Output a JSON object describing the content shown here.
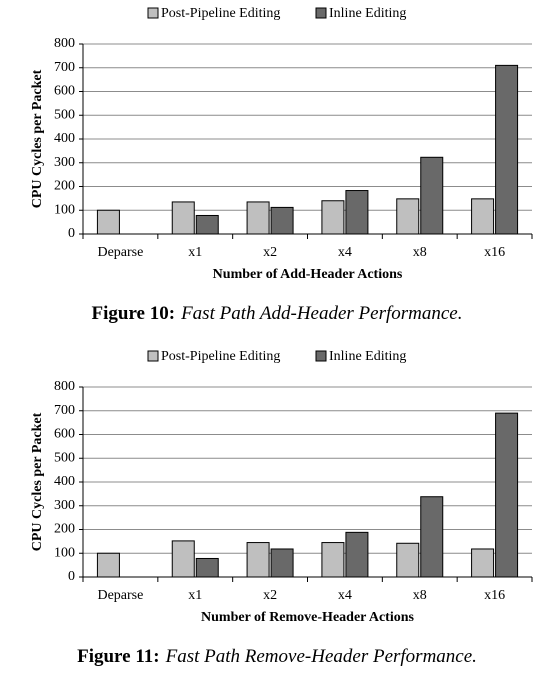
{
  "chart_data": [
    {
      "type": "bar",
      "caption_label": "Figure 10:",
      "caption": "Fast Path Add-Header Performance.",
      "x_label": "Number of Add-Header Actions",
      "y_label": "CPU Cycles per Packet",
      "categories": [
        "Deparse",
        "x1",
        "x2",
        "x4",
        "x8",
        "x16"
      ],
      "series": [
        {
          "name": "Post-Pipeline Editing",
          "color": "#bfbfbf",
          "values": [
            100,
            135,
            135,
            140,
            148,
            148
          ]
        },
        {
          "name": "Inline Editing",
          "color": "#696969",
          "values": [
            null,
            78,
            112,
            183,
            323,
            710
          ]
        }
      ],
      "ylim": [
        0,
        800
      ],
      "yticks": [
        0,
        100,
        200,
        300,
        400,
        500,
        600,
        700,
        800
      ],
      "grid": true,
      "legend": "top"
    },
    {
      "type": "bar",
      "caption_label": "Figure 11:",
      "caption": "Fast Path Remove-Header Performance.",
      "x_label": "Number of Remove-Header Actions",
      "y_label": "CPU Cycles per Packet",
      "categories": [
        "Deparse",
        "x1",
        "x2",
        "x4",
        "x8",
        "x16"
      ],
      "series": [
        {
          "name": "Post-Pipeline Editing",
          "color": "#bfbfbf",
          "values": [
            100,
            152,
            145,
            145,
            142,
            118
          ]
        },
        {
          "name": "Inline Editing",
          "color": "#696969",
          "values": [
            null,
            78,
            118,
            188,
            338,
            690
          ]
        }
      ],
      "ylim": [
        0,
        800
      ],
      "yticks": [
        0,
        100,
        200,
        300,
        400,
        500,
        600,
        700,
        800
      ],
      "grid": true,
      "legend": "top"
    }
  ]
}
